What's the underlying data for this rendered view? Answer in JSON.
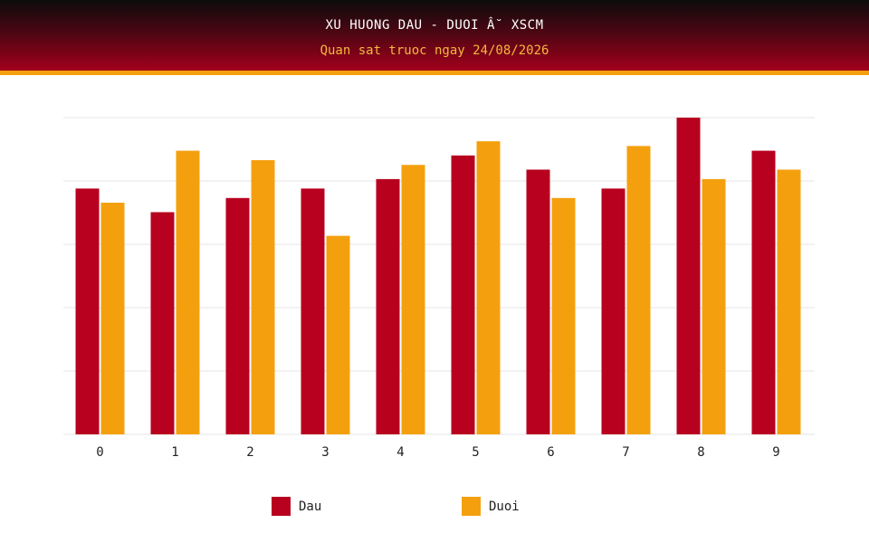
{
  "header": {
    "title": "XU HUONG DAU - DUOI Â˘ XSCM",
    "subtitle": "Quan sat truoc ngay 24/08/2026"
  },
  "colors": {
    "dau": "#b8001f",
    "duoi": "#f4a00e",
    "grid": "#e6e6e6",
    "axis_text": "#222222"
  },
  "chart_data": {
    "type": "bar",
    "categories": [
      "0",
      "1",
      "2",
      "3",
      "4",
      "5",
      "6",
      "7",
      "8",
      "9"
    ],
    "series": [
      {
        "name": "Dau",
        "values": [
          26,
          23.5,
          25,
          26,
          27,
          29.5,
          28,
          26,
          33.5,
          30
        ]
      },
      {
        "name": "Duoi",
        "values": [
          24.5,
          30,
          29,
          21,
          28.5,
          31,
          25,
          30.5,
          27,
          28
        ]
      }
    ],
    "title": "XU HUONG DAU - DUOI Â˘ XSCM",
    "subtitle": "Quan sat truoc ngay 24/08/2026",
    "xlabel": "",
    "ylabel": "",
    "ylim": [
      0,
      33.5
    ],
    "y_tick_labels_shown": false,
    "grid": true,
    "legend": "bottom"
  }
}
